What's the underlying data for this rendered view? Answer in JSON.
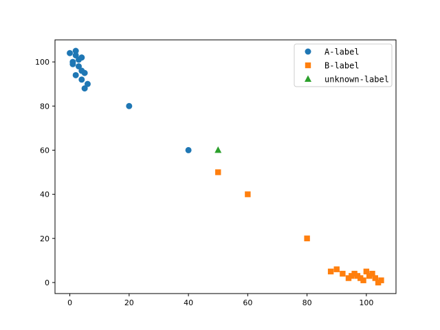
{
  "chart_data": {
    "type": "scatter",
    "title": "",
    "xlabel": "",
    "ylabel": "",
    "xlim": [
      -5,
      110
    ],
    "ylim": [
      -5,
      110
    ],
    "xticks": [
      0,
      20,
      40,
      60,
      80,
      100
    ],
    "yticks": [
      0,
      20,
      40,
      60,
      80,
      100
    ],
    "grid": false,
    "legend_position": "top-right",
    "series": [
      {
        "name": "A-label",
        "marker": "circle",
        "color": "#1f77b4",
        "x": [
          0,
          1,
          1,
          2,
          2,
          2,
          3,
          3,
          4,
          4,
          4,
          5,
          5,
          6,
          20,
          40
        ],
        "y": [
          104,
          100,
          99,
          105,
          103,
          94,
          101,
          98,
          102,
          96,
          92,
          95,
          88,
          90,
          80,
          60
        ]
      },
      {
        "name": "B-label",
        "marker": "square",
        "color": "#ff7f0e",
        "x": [
          50,
          60,
          80,
          88,
          90,
          92,
          94,
          95,
          96,
          97,
          98,
          99,
          100,
          101,
          102,
          103,
          104,
          105
        ],
        "y": [
          50,
          40,
          20,
          5,
          6,
          4,
          2,
          3,
          4,
          3,
          2,
          1,
          5,
          3,
          4,
          2,
          0,
          1
        ]
      },
      {
        "name": "unknown-label",
        "marker": "triangle",
        "color": "#2ca02c",
        "x": [
          50
        ],
        "y": [
          60
        ]
      }
    ]
  }
}
